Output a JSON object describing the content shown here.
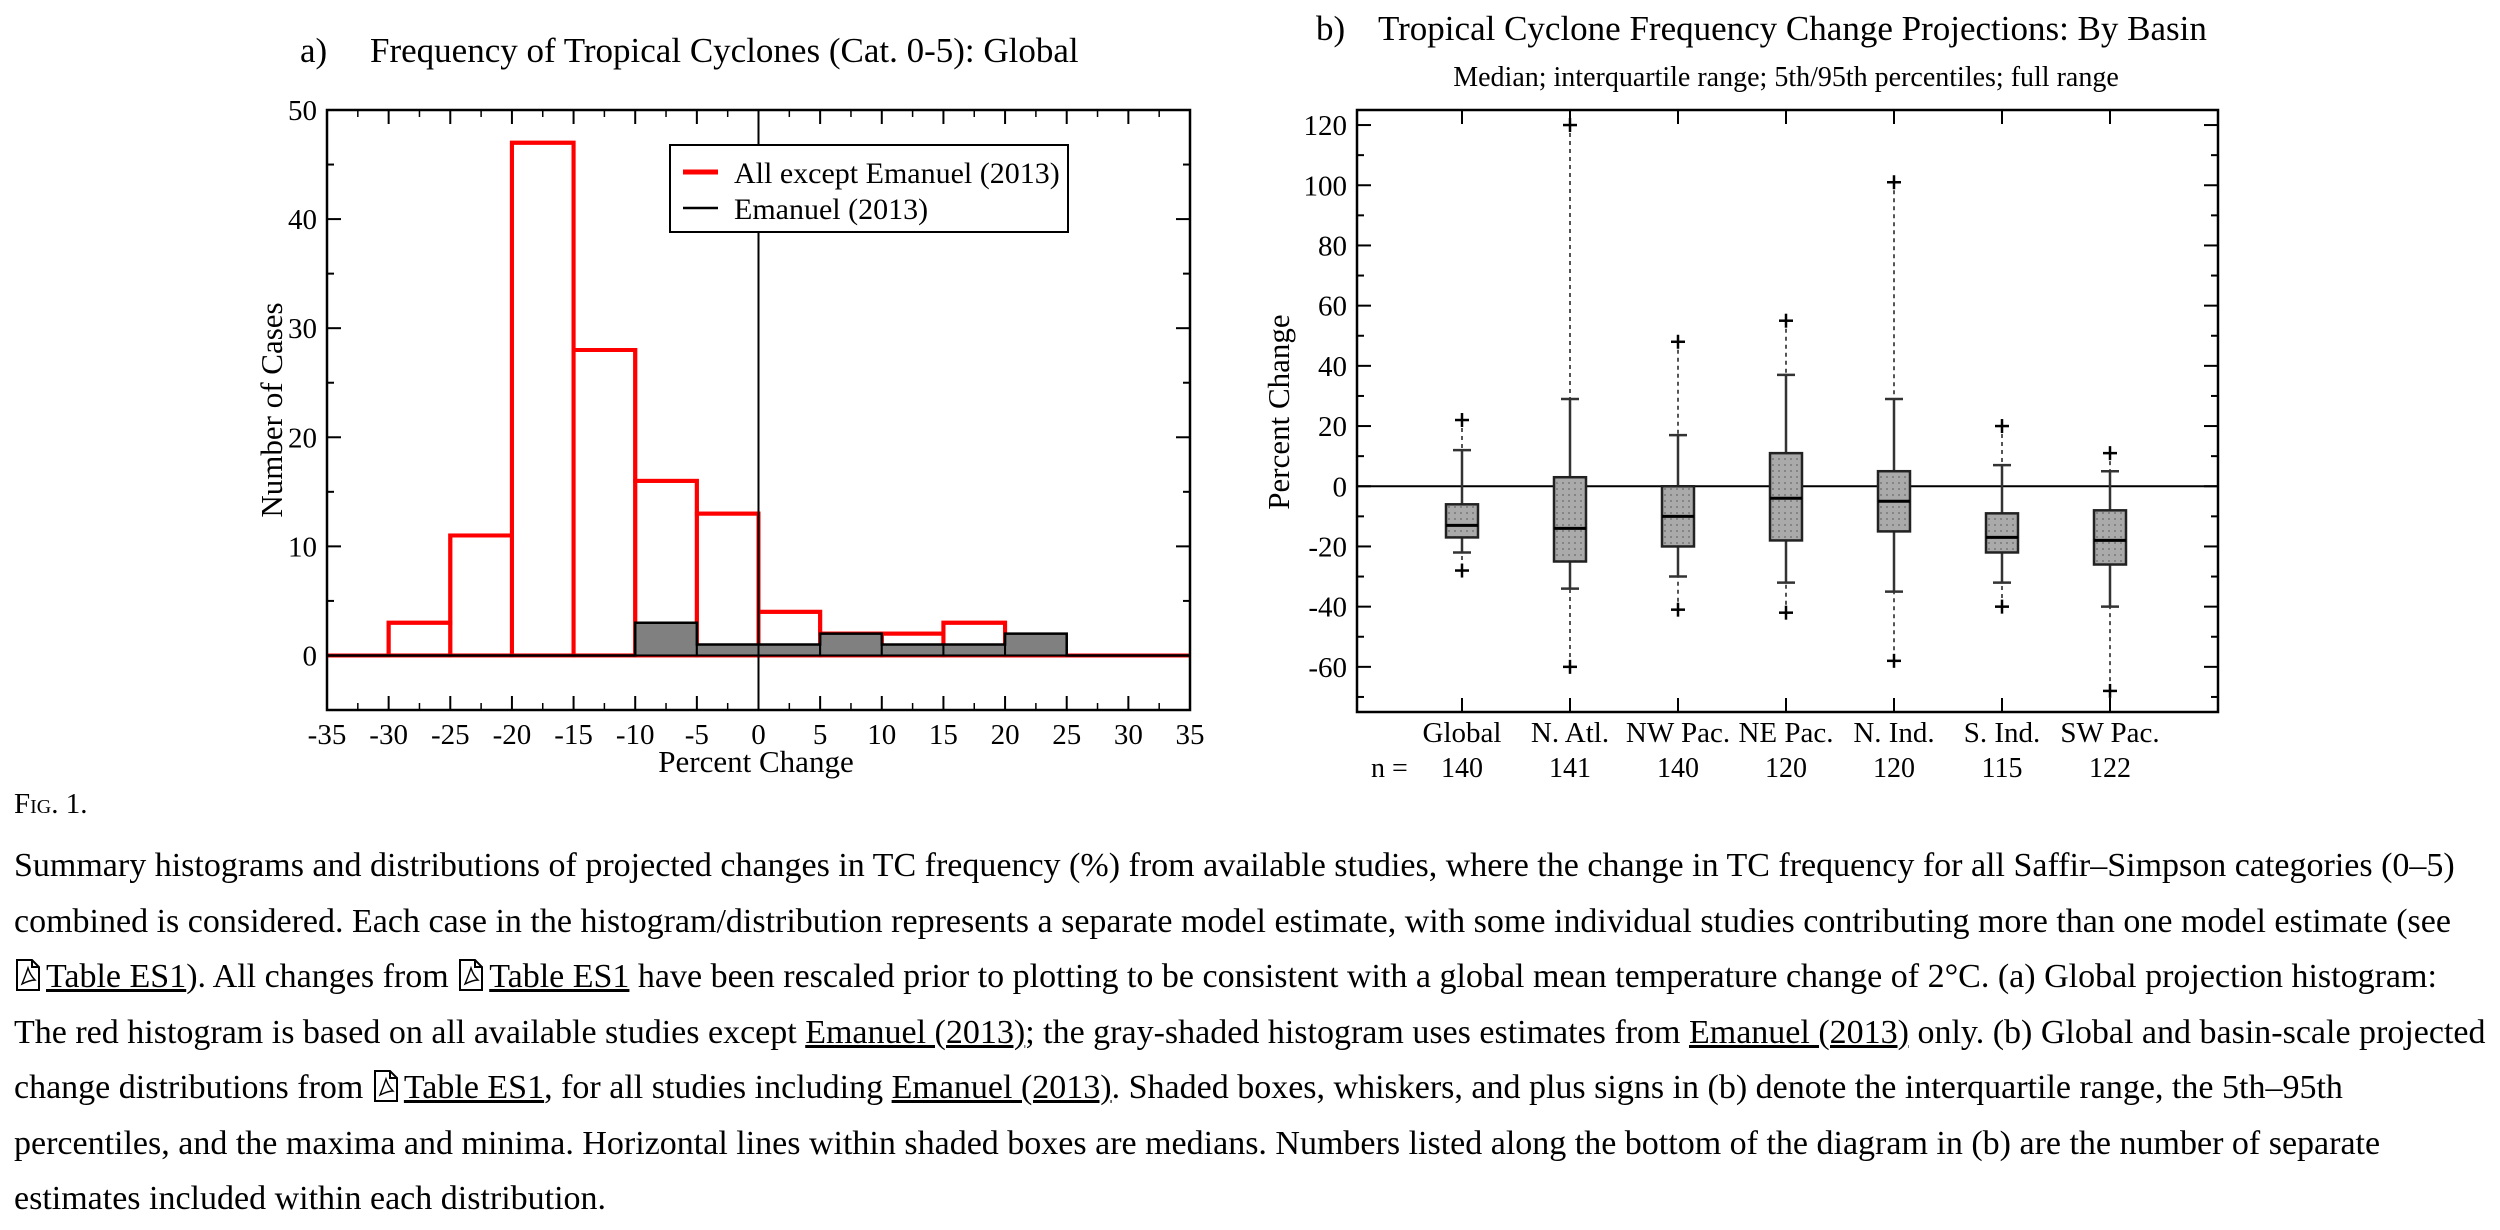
{
  "chart_data": [
    {
      "type": "histogram",
      "panel": "a)",
      "title": "Frequency of Tropical Cyclones (Cat. 0-5):  Global",
      "xlabel": "Percent Change",
      "ylabel": "Number of Cases",
      "xlim": [
        -35,
        35
      ],
      "ylim": [
        -5,
        50
      ],
      "xticks": [
        -35,
        -30,
        -25,
        -20,
        -15,
        -10,
        -5,
        0,
        5,
        10,
        15,
        20,
        25,
        30,
        35
      ],
      "yticks": [
        0,
        10,
        20,
        30,
        40,
        50
      ],
      "bin_edges": [
        -35,
        -30,
        -25,
        -20,
        -15,
        -10,
        -5,
        0,
        5,
        10,
        15,
        20,
        25,
        30,
        35
      ],
      "legend_position": "top-right",
      "series": [
        {
          "name": "All except Emanuel (2013)",
          "color": "#ff0000",
          "values": [
            0,
            3,
            11,
            47,
            28,
            16,
            13,
            4,
            2,
            2,
            3,
            0,
            0,
            0
          ]
        },
        {
          "name": "Emanuel (2013)",
          "color": "#000000",
          "fill": "#808080",
          "values": [
            0,
            0,
            0,
            0,
            0,
            3,
            1,
            1,
            2,
            1,
            1,
            2,
            0,
            0
          ]
        }
      ]
    },
    {
      "type": "boxplot",
      "panel": "b)",
      "title": "Tropical Cyclone Frequency Change Projections:  By Basin",
      "subtitle": "Median; interquartile range; 5th/95th percentiles; full range",
      "ylabel": "Percent Change",
      "ylim": [
        -75,
        125
      ],
      "yticks": [
        -60,
        -40,
        -20,
        0,
        20,
        40,
        60,
        80,
        100,
        120
      ],
      "n_label": "n =",
      "boxes": [
        {
          "label": "Global",
          "n": "140",
          "min": -28,
          "p5": -22,
          "q1": -17,
          "median": -13,
          "q3": -6,
          "p95": 12,
          "max": 22
        },
        {
          "label": "N. Atl.",
          "n": "141",
          "min": -60,
          "p5": -34,
          "q1": -25,
          "median": -14,
          "q3": 3,
          "p95": 29,
          "max": 120
        },
        {
          "label": "NW Pac.",
          "n": "140",
          "min": -41,
          "p5": -30,
          "q1": -20,
          "median": -10,
          "q3": 0,
          "p95": 17,
          "max": 48
        },
        {
          "label": "NE Pac.",
          "n": "120",
          "min": -42,
          "p5": -32,
          "q1": -18,
          "median": -4,
          "q3": 11,
          "p95": 37,
          "max": 55
        },
        {
          "label": "N. Ind.",
          "n": "120",
          "min": -58,
          "p5": -35,
          "q1": -15,
          "median": -5,
          "q3": 5,
          "p95": 29,
          "max": 101
        },
        {
          "label": "S. Ind.",
          "n": "115",
          "min": -40,
          "p5": -32,
          "q1": -22,
          "median": -17,
          "q3": -9,
          "p95": 7,
          "max": 20
        },
        {
          "label": "SW Pac.",
          "n": "122",
          "min": -68,
          "p5": -40,
          "q1": -26,
          "median": -18,
          "q3": -8,
          "p95": 5,
          "max": 11
        }
      ]
    }
  ],
  "figure_label": {
    "prefix": "F",
    "rest": "ig.",
    "number": "1."
  },
  "caption": {
    "t1": "Summary histograms and distributions of projected changes in TC frequency (%) from available studies, where the change in TC frequency for all Saffir–Simpson categories (0–5) combined is considered. Each case in the histogram/distribution represents a separate model estimate, with some individual studies contributing more than one model estimate (see ",
    "link_table": "Table ES1",
    "t2": "). All changes from ",
    "t3": " have been rescaled prior to plotting to be consistent with a global mean temperature change of 2°C. (a) Global projection histogram: The red histogram is based on all available studies except ",
    "link_emanuel": "Emanuel (2013)",
    "t4": "; the gray-shaded histogram uses estimates from ",
    "t5": " only. (b) Global and basin-scale projected change distributions from ",
    "t6": ", for all studies including ",
    "t7": ". Shaded boxes, whiskers, and plus signs in (b) denote the interquartile range, the 5th–95th percentiles, and the maxima and minima. Horizontal lines within shaded boxes are medians. Numbers listed along the bottom of the diagram in (b) are the number of separate estimates included within each distribution."
  }
}
